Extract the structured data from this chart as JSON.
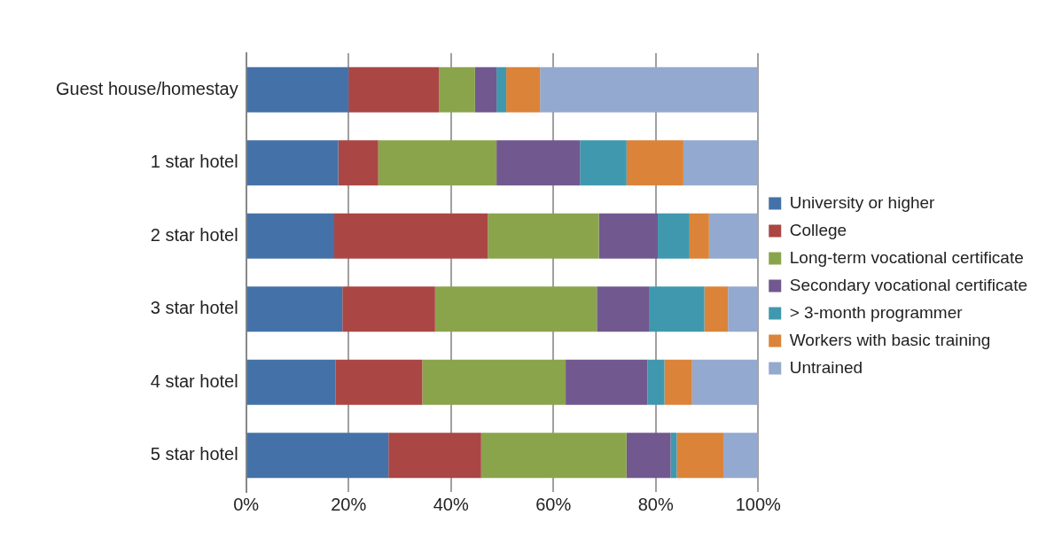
{
  "chart_data": {
    "type": "bar",
    "orientation": "horizontal",
    "stacked": true,
    "categories": [
      "Guest house/homestay",
      "1 star hotel",
      "2 star hotel",
      "3 star hotel",
      "4 star hotel",
      "5 star hotel"
    ],
    "series": [
      {
        "name": "University or higher",
        "color": "#4472a8",
        "values": [
          20.0,
          18.0,
          17.2,
          18.8,
          17.5,
          27.8
        ]
      },
      {
        "name": "College",
        "color": "#aa4644",
        "values": [
          17.7,
          7.8,
          30.0,
          18.1,
          16.9,
          18.1
        ]
      },
      {
        "name": "Long-term vocational certificate",
        "color": "#8aa44c",
        "values": [
          7.0,
          23.1,
          21.7,
          31.6,
          28.0,
          28.4
        ]
      },
      {
        "name": "Secondary vocational certificate",
        "color": "#71588f",
        "values": [
          4.2,
          16.3,
          11.5,
          10.3,
          16.0,
          8.6
        ]
      },
      {
        "name": "> 3-month programmer",
        "color": "#4098ae",
        "values": [
          1.9,
          9.1,
          6.2,
          10.7,
          3.3,
          1.2
        ]
      },
      {
        "name": "Workers with basic training",
        "color": "#db8339",
        "values": [
          6.6,
          11.1,
          3.8,
          4.6,
          5.4,
          9.1
        ]
      },
      {
        "name": "Untrained",
        "color": "#93a9cf",
        "values": [
          42.6,
          14.6,
          9.6,
          5.9,
          12.9,
          6.8
        ]
      }
    ],
    "xlim": [
      0,
      100
    ],
    "xticks": [
      {
        "value": 0,
        "label": "0%"
      },
      {
        "value": 20,
        "label": "20%"
      },
      {
        "value": 40,
        "label": "40%"
      },
      {
        "value": 60,
        "label": "60%"
      },
      {
        "value": 80,
        "label": "80%"
      },
      {
        "value": 100,
        "label": "100%"
      }
    ],
    "grid": "x",
    "legend": "right"
  }
}
